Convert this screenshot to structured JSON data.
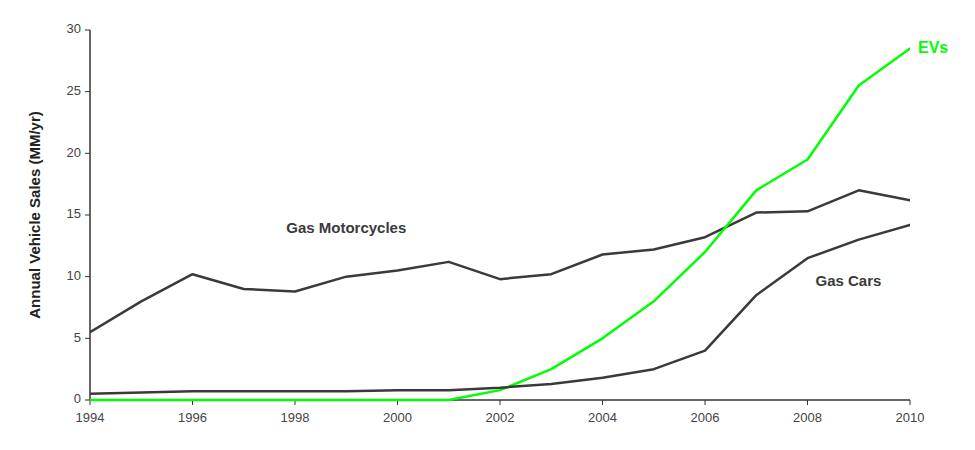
{
  "chart_data": {
    "type": "line",
    "ylabel": "Annual Vehicle Sales (MM/yr)",
    "x": [
      1994,
      1995,
      1996,
      1997,
      1998,
      1999,
      2000,
      2001,
      2002,
      2003,
      2004,
      2005,
      2006,
      2007,
      2008,
      2009,
      2010
    ],
    "series": [
      {
        "name": "Gas Motorcycles",
        "color": "#3a3a3a",
        "values": [
          5.5,
          8.0,
          10.2,
          9.0,
          8.8,
          10.0,
          10.5,
          11.2,
          9.8,
          10.2,
          11.8,
          12.2,
          13.2,
          15.2,
          15.3,
          17.0,
          16.2
        ]
      },
      {
        "name": "EVs",
        "color": "#00ff00",
        "values": [
          0.0,
          0.0,
          0.0,
          0.0,
          0.0,
          0.0,
          0.0,
          0.0,
          0.8,
          2.5,
          5.0,
          8.0,
          12.0,
          17.0,
          19.5,
          25.5,
          28.5
        ]
      },
      {
        "name": "Gas Cars",
        "color": "#3a3a3a",
        "values": [
          0.5,
          0.6,
          0.7,
          0.7,
          0.7,
          0.7,
          0.8,
          0.8,
          1.0,
          1.3,
          1.8,
          2.5,
          4.0,
          8.5,
          11.5,
          13.0,
          14.2
        ]
      }
    ],
    "xlim": [
      1994,
      2010
    ],
    "ylim": [
      0,
      30
    ],
    "xticks": [
      1994,
      1996,
      1998,
      2000,
      2002,
      2004,
      2006,
      2008,
      2010
    ],
    "yticks": [
      0,
      5,
      10,
      15,
      20,
      25,
      30
    ]
  }
}
